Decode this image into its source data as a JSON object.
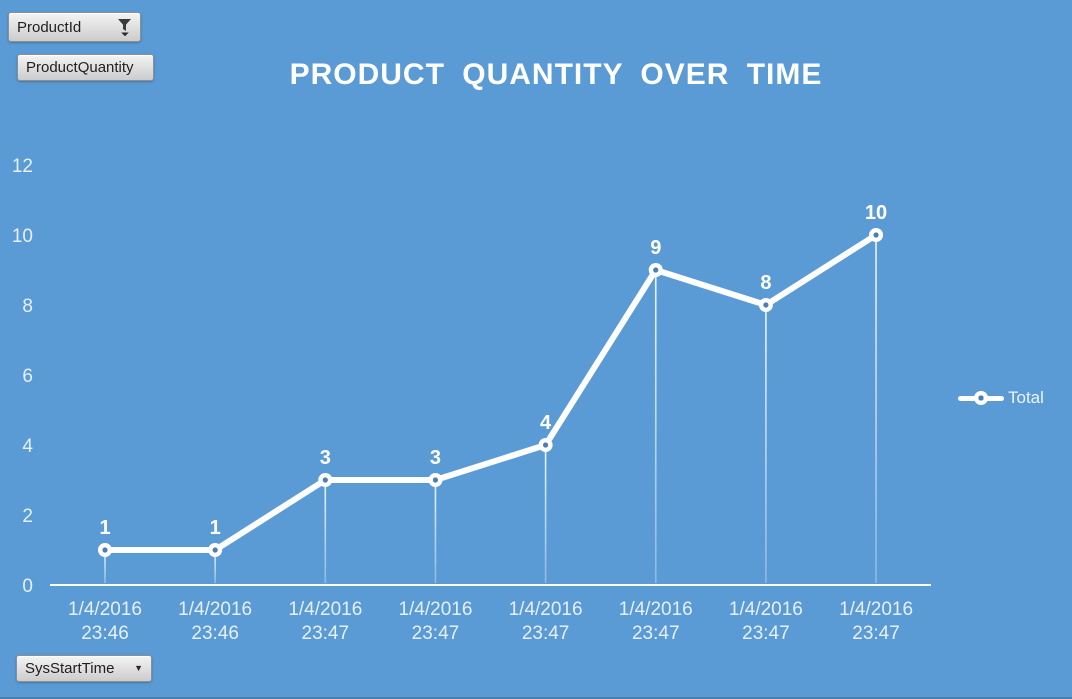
{
  "colors": {
    "background": "#5B9BD5",
    "series_line": "#FFFFFF",
    "marker_hole": "#4A7FB5",
    "axis_text": "#E7F0F9",
    "data_label_text": "#FFFFFF"
  },
  "field_buttons": {
    "product_id": {
      "label": "ProductId",
      "icon": "filter-icon"
    },
    "product_quantity": {
      "label": "ProductQuantity"
    },
    "sys_start_time": {
      "label": "SysStartTime",
      "icon": "dropdown-arrow-icon"
    }
  },
  "chart_data": {
    "type": "line",
    "title": "PRODUCT QUANTITY OVER TIME",
    "categories": [
      "1/4/2016 23:46",
      "1/4/2016 23:46",
      "1/4/2016 23:47",
      "1/4/2016 23:47",
      "1/4/2016 23:47",
      "1/4/2016 23:47",
      "1/4/2016 23:47",
      "1/4/2016 23:47"
    ],
    "series": [
      {
        "name": "Total",
        "values": [
          1,
          1,
          3,
          3,
          4,
          9,
          8,
          10
        ]
      }
    ],
    "xlabel": "",
    "ylabel": "",
    "ylim": [
      0,
      12
    ],
    "yticks": [
      0,
      2,
      4,
      6,
      8,
      10,
      12
    ],
    "grid": false,
    "drop_lines": true,
    "data_labels": true,
    "marker": "circle-donut",
    "legend_position": "right"
  }
}
